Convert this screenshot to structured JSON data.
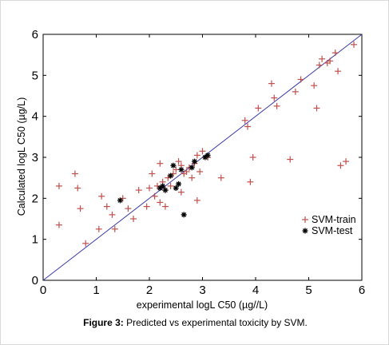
{
  "caption": {
    "label": "Figure 3:",
    "text": "Predicted vs experimental toxicity by SVM."
  },
  "chart_data": {
    "type": "scatter",
    "xlabel": "experimental logL C50 (µg//L)",
    "ylabel": "Calculated logL C50 (µg/L)",
    "xlim": [
      0,
      6
    ],
    "ylim": [
      0,
      6
    ],
    "xticks": [
      0,
      1,
      2,
      3,
      4,
      5,
      6
    ],
    "yticks": [
      0,
      1,
      2,
      3,
      4,
      5,
      6
    ],
    "grid": false,
    "legend_position": "right-middle",
    "reference_line": {
      "x": [
        0,
        6
      ],
      "y": [
        0,
        6
      ],
      "color": "#3a3aa8"
    },
    "series": [
      {
        "name": "SVM-train",
        "marker": "+",
        "color": "#c0504d",
        "x": [
          0.3,
          0.3,
          0.6,
          0.65,
          0.7,
          0.8,
          1.05,
          1.1,
          1.2,
          1.3,
          1.35,
          1.5,
          1.6,
          1.7,
          1.8,
          1.95,
          2.0,
          2.05,
          2.1,
          2.15,
          2.2,
          2.2,
          2.25,
          2.3,
          2.35,
          2.4,
          2.45,
          2.5,
          2.55,
          2.6,
          2.65,
          2.7,
          2.75,
          2.8,
          2.85,
          2.9,
          2.95,
          3.0,
          3.1,
          3.35,
          3.8,
          3.85,
          3.9,
          3.95,
          4.05,
          4.3,
          4.35,
          4.4,
          4.65,
          4.75,
          4.85,
          5.1,
          5.15,
          5.2,
          5.25,
          5.35,
          5.4,
          5.5,
          5.55,
          5.6,
          5.7,
          5.85,
          2.3,
          2.6,
          2.9
        ],
        "y": [
          2.3,
          1.35,
          2.6,
          2.25,
          1.75,
          0.9,
          1.25,
          2.05,
          1.8,
          1.6,
          1.25,
          2.0,
          1.75,
          1.5,
          2.2,
          1.8,
          2.25,
          2.6,
          2.05,
          2.3,
          2.85,
          1.9,
          2.4,
          2.2,
          2.5,
          2.3,
          2.6,
          2.7,
          2.9,
          2.8,
          2.6,
          2.65,
          2.75,
          2.5,
          2.85,
          3.05,
          2.65,
          3.15,
          3.0,
          2.5,
          3.9,
          3.75,
          2.4,
          3.0,
          4.2,
          4.8,
          4.45,
          4.25,
          2.95,
          4.6,
          4.9,
          4.75,
          4.2,
          5.25,
          5.4,
          5.3,
          5.35,
          5.55,
          5.1,
          2.8,
          2.9,
          5.75,
          1.8,
          2.15,
          1.95
        ]
      },
      {
        "name": "SVM-test",
        "marker": "*",
        "color": "#000000",
        "x": [
          1.45,
          2.2,
          2.25,
          2.3,
          2.4,
          2.45,
          2.5,
          2.55,
          2.6,
          2.65,
          2.8,
          2.85,
          3.05,
          3.1
        ],
        "y": [
          1.95,
          2.25,
          2.3,
          2.2,
          2.55,
          2.8,
          2.25,
          2.35,
          2.7,
          1.6,
          2.75,
          2.9,
          3.0,
          3.05
        ]
      }
    ]
  }
}
